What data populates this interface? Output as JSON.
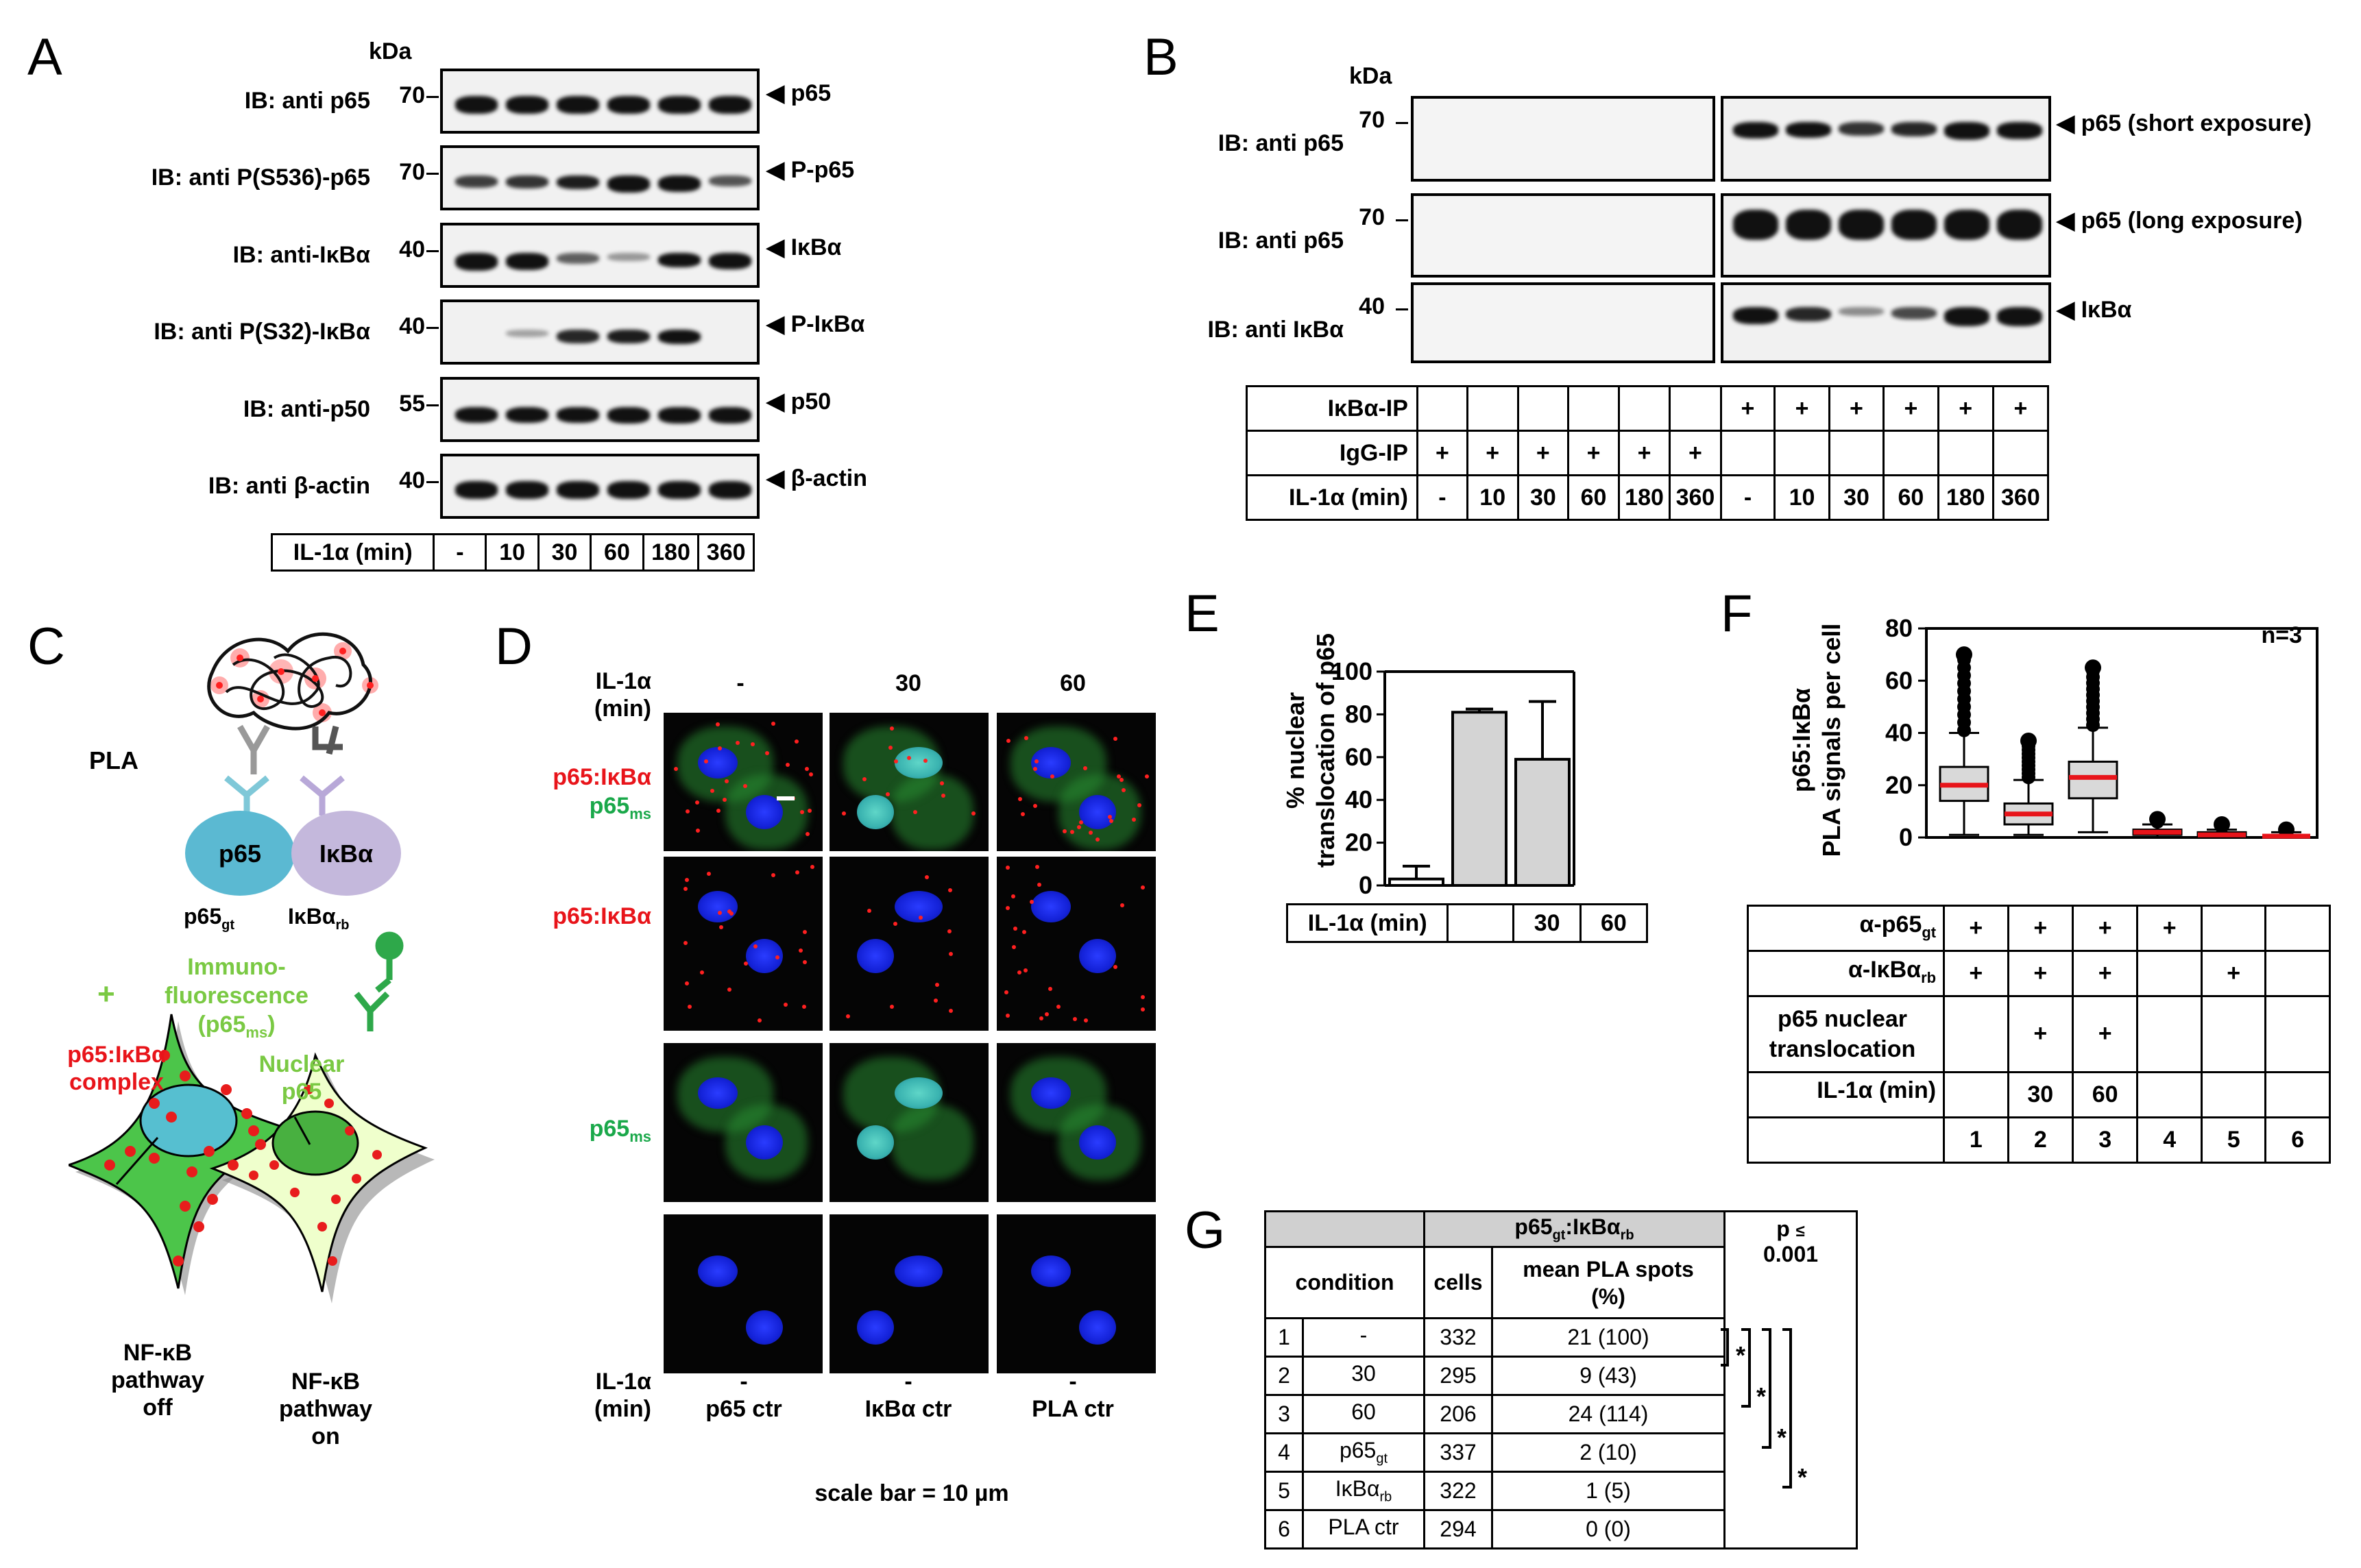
{
  "panels": {
    "A": "A",
    "B": "B",
    "C": "C",
    "D": "D",
    "E": "E",
    "F": "F",
    "G": "G"
  },
  "A": {
    "kda": "kDa",
    "rows": [
      {
        "ib": "IB: anti p65",
        "mw": "70",
        "target": "p65"
      },
      {
        "ib": "IB: anti P(S536)-p65",
        "mw": "70",
        "target": "P-p65"
      },
      {
        "ib": "IB: anti-IκBα",
        "mw": "40",
        "target": "IκBα"
      },
      {
        "ib": "IB: anti P(S32)-IκBα",
        "mw": "40",
        "target": "P-IκBα"
      },
      {
        "ib": "IB: anti-p50",
        "mw": "55",
        "target": "p50"
      },
      {
        "ib": "IB: anti β-actin",
        "mw": "40",
        "target": "β-actin"
      }
    ],
    "condition_label": "IL-1α (min)",
    "timepoints": [
      "-",
      "10",
      "30",
      "60",
      "180",
      "360"
    ]
  },
  "B": {
    "kda": "kDa",
    "rows": [
      {
        "ib": "IB: anti p65",
        "mw": "70",
        "target": "p65 (short exposure)"
      },
      {
        "ib": "IB: anti p65",
        "mw": "70",
        "target": "p65 (long exposure)"
      },
      {
        "ib": "IB: anti IκBα",
        "mw": "40",
        "target": "IκBα"
      }
    ],
    "table": {
      "row_labels": [
        "IκBα-IP",
        "IgG-IP",
        "IL-1α (min)"
      ],
      "ikba_ip": [
        "",
        "",
        "",
        "",
        "",
        "",
        "+",
        "+",
        "+",
        "+",
        "+",
        "+"
      ],
      "igg_ip": [
        "+",
        "+",
        "+",
        "+",
        "+",
        "+",
        "",
        "",
        "",
        "",
        "",
        ""
      ],
      "il1a": [
        "-",
        "10",
        "30",
        "60",
        "180",
        "360",
        "-",
        "10",
        "30",
        "60",
        "180",
        "360"
      ]
    }
  },
  "C": {
    "pla": "PLA",
    "p65": "p65",
    "ikba": "IκBα",
    "p65gt": "p65",
    "p65gt_sub": "gt",
    "ikbarb": "IκBα",
    "ikbarb_sub": "rb",
    "plus": "+",
    "if_line1": "Immuno-",
    "if_line2": "fluorescence",
    "if_line3": "(p65",
    "if_line3_sub": "ms",
    "if_line3_end": ")",
    "complex_line1": "p65:IκBα",
    "complex_line2": "complex",
    "nuclear_line1": "Nuclear",
    "nuclear_line2": "p65",
    "off_lines": [
      "NF-κB",
      "pathway",
      "off"
    ],
    "on_lines": [
      "NF-κB",
      "pathway",
      "on"
    ]
  },
  "D": {
    "il1a_top": [
      "IL-1α",
      "(min)"
    ],
    "top_times": [
      "-",
      "30",
      "60"
    ],
    "row_labels": [
      "p65:IκBα",
      "p65:IκBα",
      "p65",
      ""
    ],
    "row1_sub": "ms",
    "row3_sub": "ms",
    "row1_extra": "p65",
    "bottom_il1a": [
      "IL-1α",
      "(min)"
    ],
    "bottom_times": [
      "-",
      "-",
      "-"
    ],
    "bottom_ctrls": [
      "p65 ctr",
      "IκBα ctr",
      "PLA ctr"
    ],
    "scale_bar": "scale bar = 10 µm"
  },
  "E": {
    "ylabel_line1": "% nuclear",
    "ylabel_line2": "translocation of p65",
    "yticks": [
      "0",
      "20",
      "40",
      "60",
      "80",
      "100"
    ],
    "condition_label": "IL-1α (min)",
    "x_labels": [
      "",
      "30",
      "60"
    ]
  },
  "chart_data": [
    {
      "type": "bar",
      "panel": "E",
      "categories": [
        "-",
        "30",
        "60"
      ],
      "values": [
        3,
        81,
        59
      ],
      "errors": [
        6,
        1.5,
        27
      ],
      "ylabel": "% nuclear translocation of p65",
      "xlabel": "IL-1α (min)",
      "ylim": [
        0,
        100
      ],
      "bar_colors": [
        "#ffffff",
        "#d4d4d4",
        "#d4d4d4"
      ]
    },
    {
      "type": "box",
      "panel": "F",
      "categories": [
        "1",
        "2",
        "3",
        "4",
        "5",
        "6"
      ],
      "medians": [
        20,
        9,
        23,
        2,
        1,
        0.5
      ],
      "q1": [
        14,
        5,
        15,
        1,
        0,
        0
      ],
      "q3": [
        27,
        13,
        29,
        3,
        2,
        1
      ],
      "whisker_low": [
        1,
        1,
        2,
        0,
        0,
        0
      ],
      "whisker_high": [
        40,
        22,
        42,
        5,
        3,
        2
      ],
      "outliers_high": [
        70,
        37,
        65,
        7,
        5,
        3
      ],
      "ylabel": "p65:IκBα PLA signals per cell",
      "ylim": [
        0,
        80
      ],
      "annotation": "n=3"
    }
  ],
  "F": {
    "ylabel_line1": "p65:IκBα",
    "ylabel_line2": "PLA signals per cell",
    "yticks": [
      "0",
      "20",
      "40",
      "60",
      "80"
    ],
    "n": "n=3",
    "table": {
      "row_labels": [
        {
          "main": "α-p65",
          "sub": "gt"
        },
        {
          "main": "α-IκBα",
          "sub": "rb"
        },
        {
          "main": "p65 nuclear\ntranslocation",
          "sub": ""
        },
        {
          "main": "IL-1α (min)",
          "sub": ""
        },
        {
          "main": "",
          "sub": ""
        }
      ],
      "a_p65": [
        "+",
        "+",
        "+",
        "+",
        "",
        ""
      ],
      "a_ikba": [
        "+",
        "+",
        "+",
        "",
        "+",
        ""
      ],
      "transloc": [
        "",
        "+",
        "+",
        "",
        "",
        ""
      ],
      "il1a": [
        "",
        "30",
        "60",
        "",
        "",
        ""
      ],
      "idx": [
        "1",
        "2",
        "3",
        "4",
        "5",
        "6"
      ]
    }
  },
  "G": {
    "header_group": "p65",
    "header_group_sub1": "gt",
    "header_group_mid": ":IκBα",
    "header_group_sub2": "rb",
    "condition": "condition",
    "cells": "cells",
    "mean_line1": "mean PLA spots",
    "mean_line2": "(%)",
    "p_label": "p",
    "p_le": "≤",
    "p_value": "0.001",
    "rows": [
      {
        "n": "1",
        "cond": "-",
        "cond_sub": "",
        "cells": "332",
        "mean": "21 (100)"
      },
      {
        "n": "2",
        "cond": "30",
        "cond_sub": "",
        "cells": "295",
        "mean": "9 (43)"
      },
      {
        "n": "3",
        "cond": "60",
        "cond_sub": "",
        "cells": "206",
        "mean": "24 (114)"
      },
      {
        "n": "4",
        "cond": "p65",
        "cond_sub": "gt",
        "cells": "337",
        "mean": "2 (10)"
      },
      {
        "n": "5",
        "cond": "IκBα",
        "cond_sub": "rb",
        "cells": "322",
        "mean": "1 (5)"
      },
      {
        "n": "6",
        "cond": "PLA ctr",
        "cond_sub": "",
        "cells": "294",
        "mean": "0 (0)"
      }
    ],
    "star": "*"
  }
}
